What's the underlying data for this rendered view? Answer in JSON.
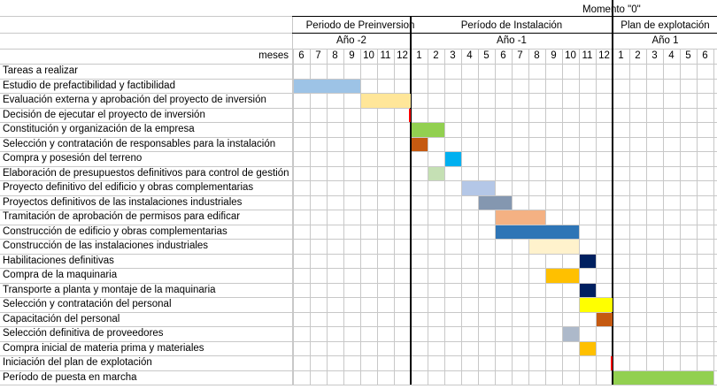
{
  "header": {
    "moment_label": "Momento \"0\"",
    "periods": [
      "Periodo de Preinversion",
      "Período de Instalación",
      "Plan de explotación"
    ],
    "years": [
      "Año -2",
      "Año -1",
      "Año 1"
    ],
    "months_label": "meses",
    "months": [
      "6",
      "7",
      "8",
      "9",
      "10",
      "11",
      "12",
      "1",
      "2",
      "3",
      "4",
      "5",
      "6",
      "7",
      "8",
      "9",
      "10",
      "11",
      "12",
      "1",
      "2",
      "3",
      "4",
      "5",
      "6"
    ]
  },
  "tasks_header": "Tareas a realizar",
  "tasks": [
    {
      "label": "Estudio de prefactibilidad y factibilidad",
      "start": 0,
      "span": 4,
      "color": "#9dc3e6"
    },
    {
      "label": "Evaluación externa y aprobación del proyecto de inversión",
      "start": 4,
      "span": 3,
      "color": "#ffe699"
    },
    {
      "label": "Decisión de ejecutar el proyecto de inversión",
      "start": 7,
      "span": 0,
      "color": "#ff0000",
      "marker": true
    },
    {
      "label": "Constitución  y organización de la empresa",
      "start": 7,
      "span": 2,
      "color": "#92d050"
    },
    {
      "label": "Selección y contratación de responsables para la instalación",
      "start": 7,
      "span": 1,
      "color": "#c55a11"
    },
    {
      "label": "Compra y posesión del terreno",
      "start": 9,
      "span": 1,
      "color": "#00b0f0"
    },
    {
      "label": "Elaboración de presupuestos definitivos para control de gestión",
      "start": 8,
      "span": 1,
      "color": "#c5e0b4"
    },
    {
      "label": "Proyecto definitivo del edificio y obras complementarias",
      "start": 10,
      "span": 2,
      "color": "#b4c7e7"
    },
    {
      "label": "Proyectos definitivos de las instalaciones industriales",
      "start": 11,
      "span": 2,
      "color": "#8497b0"
    },
    {
      "label": "Tramitación de aprobación de permisos para edificar",
      "start": 12,
      "span": 3,
      "color": "#f4b183"
    },
    {
      "label": "Construcción de edificio y obras complementarias",
      "start": 12,
      "span": 5,
      "color": "#2e75b6"
    },
    {
      "label": "Construcción de las instalaciones industriales",
      "start": 14,
      "span": 3,
      "color": "#fff2cc"
    },
    {
      "label": "Habilitaciones definitivas",
      "start": 17,
      "span": 1,
      "color": "#002060"
    },
    {
      "label": "Compra de la maquinaria",
      "start": 15,
      "span": 2,
      "color": "#ffc000"
    },
    {
      "label": "Transporte a planta y montaje de la maquinaria",
      "start": 17,
      "span": 1,
      "color": "#002060"
    },
    {
      "label": "Selección y contratación del personal",
      "start": 17,
      "span": 2,
      "color": "#ffff00"
    },
    {
      "label": "Capacitación del personal",
      "start": 18,
      "span": 1,
      "color": "#c55a11"
    },
    {
      "label": "Selección definitiva de proveedores",
      "start": 16,
      "span": 1,
      "color": "#adb9ca"
    },
    {
      "label": "Compra inicial de materia prima y materiales",
      "start": 17,
      "span": 1,
      "color": "#ffc000"
    },
    {
      "label": "Iniciación del plan de explotación",
      "start": 19,
      "span": 0,
      "color": "#ff0000",
      "marker": true
    },
    {
      "label": "Período de puesta en marcha",
      "start": 19,
      "span": 6,
      "color": "#92d050"
    }
  ]
}
